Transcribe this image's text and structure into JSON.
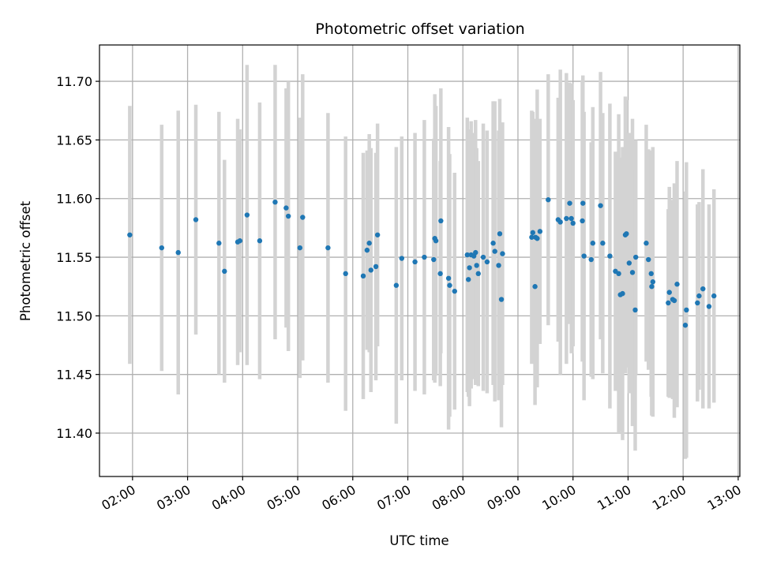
{
  "chart_data": {
    "type": "scatter",
    "title": "Photometric offset variation",
    "xlabel": "UTC time",
    "ylabel": "Photometric offset",
    "x_unit": "hours UTC",
    "xlim": [
      1.4,
      13.03
    ],
    "ylim": [
      11.363,
      11.731
    ],
    "x_ticks": [
      2,
      3,
      4,
      5,
      6,
      7,
      8,
      9,
      10,
      11,
      12,
      13
    ],
    "x_tick_labels": [
      "02:00",
      "03:00",
      "04:00",
      "05:00",
      "06:00",
      "07:00",
      "08:00",
      "09:00",
      "10:00",
      "11:00",
      "12:00",
      "13:00"
    ],
    "y_ticks": [
      11.4,
      11.45,
      11.5,
      11.55,
      11.6,
      11.65,
      11.7
    ],
    "y_tick_labels": [
      "11.40",
      "11.45",
      "11.50",
      "11.55",
      "11.60",
      "11.65",
      "11.70"
    ],
    "grid": true,
    "colors": {
      "points": "#1f77b4",
      "errorbars": "#d3d3d3",
      "grid": "#b0b0b0"
    },
    "series": [
      {
        "x": [
          1.95,
          2.53,
          2.83,
          3.15,
          3.57,
          3.67,
          3.91,
          3.95,
          4.08,
          4.31,
          4.59,
          4.79,
          4.83,
          5.04,
          5.09,
          5.55,
          5.87,
          6.19,
          6.26,
          6.3,
          6.33,
          6.42,
          6.45,
          6.79,
          6.89,
          7.13,
          7.3,
          7.47,
          7.49,
          7.51,
          7.59,
          7.6,
          7.74,
          7.76,
          7.85,
          8.08,
          8.1,
          8.12,
          8.15,
          8.2,
          8.23,
          8.25,
          8.28,
          8.37,
          8.44,
          8.55,
          8.58,
          8.65,
          8.67,
          8.7,
          8.72,
          9.25,
          9.27,
          9.31,
          9.32,
          9.35,
          9.4,
          9.55,
          9.73,
          9.77,
          9.88,
          9.94,
          9.97,
          10.0,
          10.17,
          10.18,
          10.2,
          10.33,
          10.36,
          10.5,
          10.54,
          10.67,
          10.77,
          10.83,
          10.86,
          10.9,
          10.95,
          10.97,
          11.02,
          11.08,
          11.13,
          11.14,
          11.33,
          11.37,
          11.42,
          11.43,
          11.45,
          11.73,
          11.75,
          11.81,
          11.84,
          11.89,
          12.04,
          12.06,
          12.26,
          12.29,
          12.36,
          12.47,
          12.56
        ],
        "y": [
          11.569,
          11.558,
          11.554,
          11.582,
          11.562,
          11.538,
          11.563,
          11.564,
          11.586,
          11.564,
          11.597,
          11.592,
          11.585,
          11.558,
          11.584,
          11.558,
          11.536,
          11.534,
          11.556,
          11.562,
          11.539,
          11.542,
          11.569,
          11.526,
          11.549,
          11.546,
          11.55,
          11.548,
          11.566,
          11.564,
          11.536,
          11.581,
          11.532,
          11.526,
          11.521,
          11.552,
          11.531,
          11.541,
          11.552,
          11.551,
          11.554,
          11.543,
          11.536,
          11.55,
          11.546,
          11.562,
          11.555,
          11.543,
          11.57,
          11.514,
          11.553,
          11.567,
          11.571,
          11.525,
          11.567,
          11.566,
          11.572,
          11.599,
          11.582,
          11.58,
          11.583,
          11.596,
          11.583,
          11.579,
          11.581,
          11.596,
          11.551,
          11.548,
          11.562,
          11.594,
          11.562,
          11.551,
          11.538,
          11.536,
          11.518,
          11.519,
          11.569,
          11.57,
          11.545,
          11.537,
          11.505,
          11.55,
          11.562,
          11.548,
          11.536,
          11.525,
          11.529,
          11.511,
          11.52,
          11.514,
          11.513,
          11.527,
          11.492,
          11.505,
          11.511,
          11.517,
          11.523,
          11.508,
          11.517
        ],
        "err": [
          0.11,
          0.105,
          0.121,
          0.098,
          0.112,
          0.095,
          0.105,
          0.095,
          0.128,
          0.118,
          0.117,
          0.102,
          0.115,
          0.111,
          0.122,
          0.115,
          0.117,
          0.105,
          0.085,
          0.093,
          0.104,
          0.097,
          0.095,
          0.118,
          0.104,
          0.11,
          0.117,
          0.103,
          0.123,
          0.115,
          0.096,
          0.113,
          0.129,
          0.112,
          0.101,
          0.117,
          0.1,
          0.118,
          0.114,
          0.105,
          0.113,
          0.1,
          0.096,
          0.114,
          0.112,
          0.121,
          0.128,
          0.115,
          0.115,
          0.109,
          0.112,
          0.108,
          0.103,
          0.101,
          0.101,
          0.127,
          0.096,
          0.107,
          0.104,
          0.13,
          0.124,
          0.103,
          0.115,
          0.105,
          0.12,
          0.109,
          0.123,
          0.1,
          0.116,
          0.114,
          0.111,
          0.13,
          0.102,
          0.136,
          0.117,
          0.125,
          0.118,
          0.114,
          0.111,
          0.131,
          0.12,
          0.1,
          0.101,
          0.094,
          0.105,
          0.11,
          0.115,
          0.08,
          0.09,
          0.085,
          0.1,
          0.105,
          0.114,
          0.126,
          0.084,
          0.08,
          0.102,
          0.087,
          0.091
        ]
      }
    ]
  }
}
